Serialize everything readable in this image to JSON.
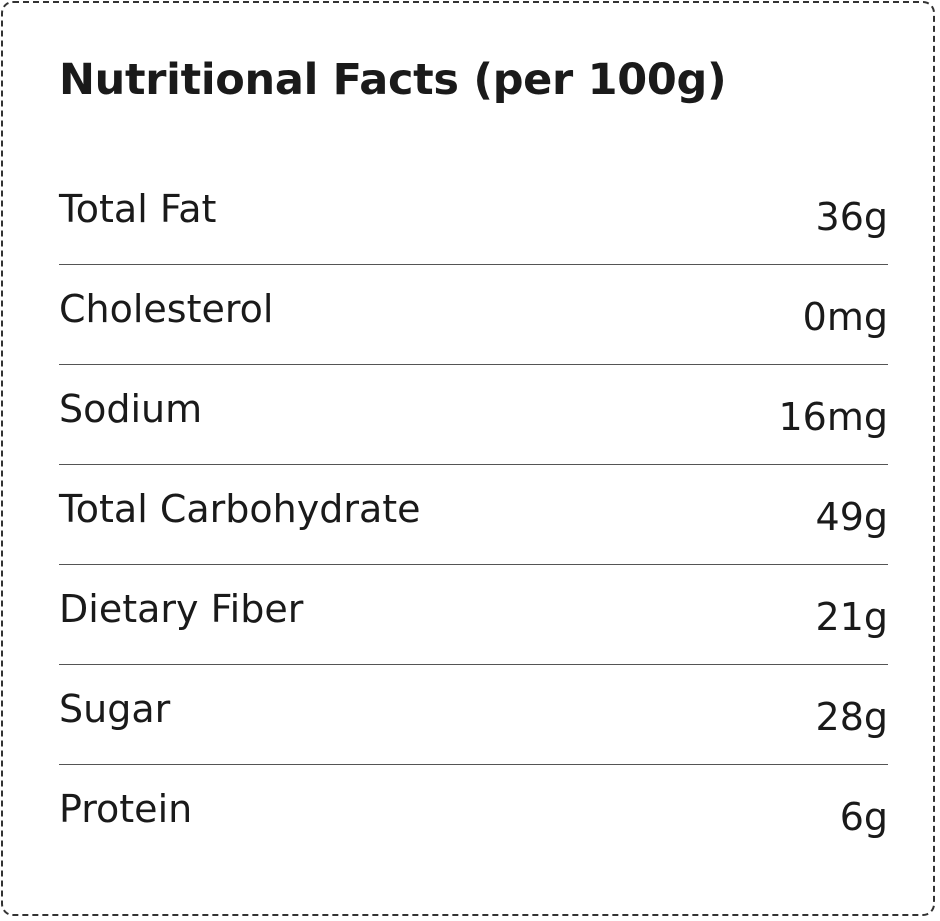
{
  "title": "Nutritional Facts (per 100g)",
  "rows": [
    {
      "label": "Total Fat",
      "value": "36g"
    },
    {
      "label": "Cholesterol",
      "value": "0mg"
    },
    {
      "label": "Sodium",
      "value": "16mg"
    },
    {
      "label": "Total Carbohydrate",
      "value": "49g"
    },
    {
      "label": "Dietary Fiber",
      "value": "21g"
    },
    {
      "label": "Sugar",
      "value": "28g"
    },
    {
      "label": "Protein",
      "value": "6g"
    }
  ]
}
